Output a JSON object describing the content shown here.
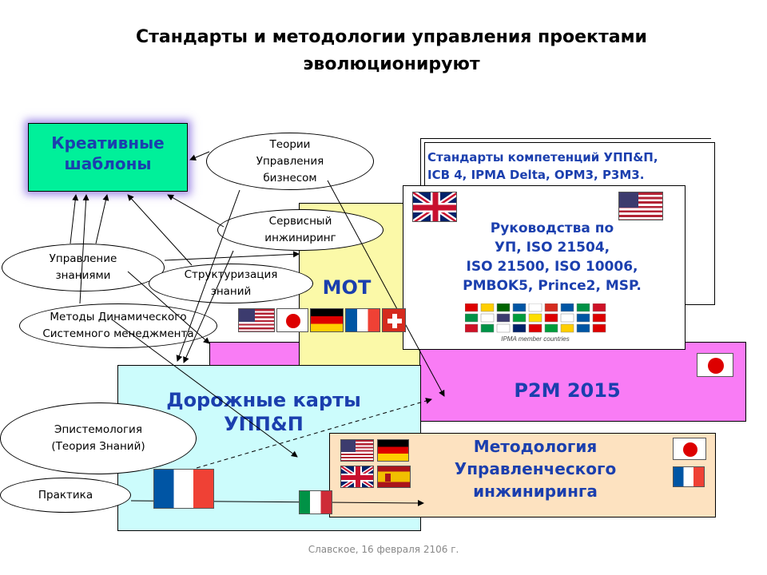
{
  "title": "Стандарты и методологии  управления проектами\nэволюционируют",
  "boxes": {
    "creative": "Креативные\nшаблоны",
    "competence": "Стандарты компетенций УПП&П,\nICB 4, IPMA Delta, OPM3, P3M3.",
    "guides": "Руководства  по\nУП, ISO 21504,\nISO 21500, ISO 10006,\nPMBOK5, Prince2, MSP.",
    "mot": "MOT",
    "p2m": "P2M 2015",
    "roadmaps": "Дорожные карты\nУПП&П",
    "methodology": "Методология\nУправленческого\nинжиниринга"
  },
  "ellipses": {
    "theories": "Теории\nУправления\nбизнесом",
    "service": "Сервисный\nинжиниринг",
    "knowledge": "Управление\nзнаниями",
    "structuring": "Структуризация\nзнаний",
    "dynamic": "Методы Динамического\nСистемного менеджмента",
    "epistemology": "Эпистемология\n(Теория Знаний)",
    "practice": "Практика"
  },
  "ipma_caption": "IPMA member countries",
  "footer": "Славское, 16 февраля 2106 г.",
  "colors": {
    "creative_bg": "#00f09a",
    "mot_bg": "#fbf9a8",
    "p2m_bg": "#f97cf5",
    "roadmap_bg": "#ccfcfc",
    "methodology_bg": "#fde2c0",
    "blue_text": "#1b3fae"
  }
}
